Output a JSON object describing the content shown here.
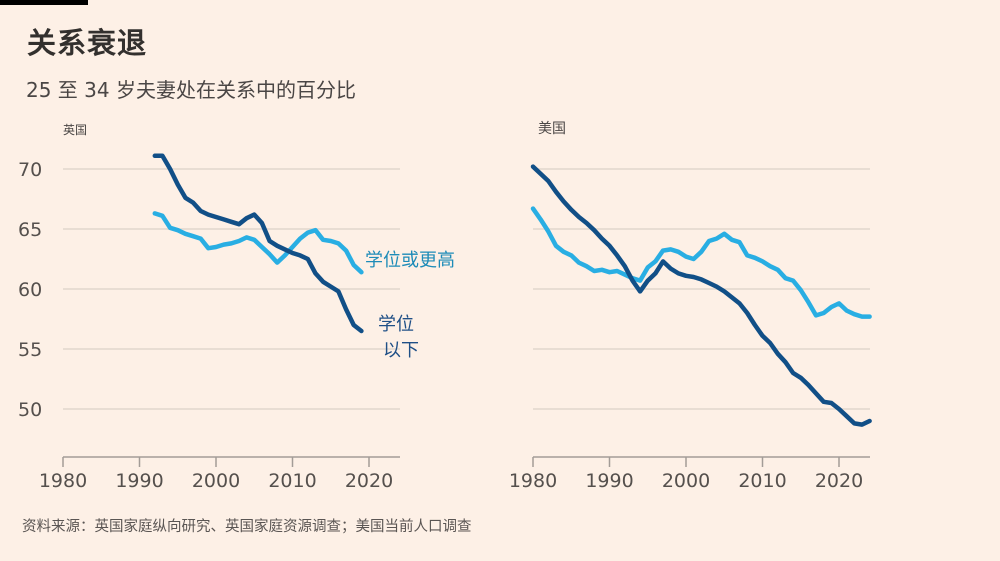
{
  "chart_data": [
    {
      "type": "line",
      "panel": "uk",
      "panel_label": "英国",
      "title": "关系衰退",
      "subtitle": "25 至 34 岁夫妻处在关系中的百分比",
      "xlabel": "",
      "ylabel": "",
      "xlim": [
        1980,
        2024
      ],
      "ylim": [
        45,
        72
      ],
      "x_ticks": [
        1980,
        1990,
        2000,
        2010,
        2020
      ],
      "y_ticks": [
        50,
        55,
        60,
        65,
        70
      ],
      "grid": true,
      "x": [
        1992,
        1993,
        1994,
        1995,
        1996,
        1997,
        1998,
        1999,
        2000,
        2001,
        2002,
        2003,
        2004,
        2005,
        2006,
        2007,
        2008,
        2009,
        2010,
        2011,
        2012,
        2013,
        2014,
        2015,
        2016,
        2017,
        2018,
        2019
      ],
      "series": [
        {
          "name": "学位或更高",
          "color": "#29aee3",
          "label_lines": [
            "学位或更高"
          ],
          "label_color": "#1d8bb8",
          "values": [
            66.3,
            66.1,
            65.1,
            64.9,
            64.6,
            64.4,
            64.2,
            63.4,
            63.5,
            63.7,
            63.8,
            64.0,
            64.3,
            64.1,
            63.5,
            62.9,
            62.2,
            62.8,
            63.5,
            64.2,
            64.7,
            64.9,
            64.1,
            64.0,
            63.8,
            63.2,
            62.0,
            61.4
          ]
        },
        {
          "name": "学位以下",
          "color": "#114f87",
          "label_lines": [
            "学位",
            "以下"
          ],
          "label_color": "#1f4f86",
          "values": [
            71.1,
            71.1,
            70.0,
            68.7,
            67.6,
            67.2,
            66.5,
            66.2,
            66.0,
            65.8,
            65.6,
            65.4,
            65.9,
            66.2,
            65.5,
            64.0,
            63.6,
            63.3,
            63.0,
            62.8,
            62.5,
            61.3,
            60.6,
            60.2,
            59.8,
            58.3,
            57.0,
            56.5
          ]
        }
      ]
    },
    {
      "type": "line",
      "panel": "us",
      "panel_label": "美国",
      "xlabel": "",
      "ylabel": "",
      "xlim": [
        1980,
        2024
      ],
      "ylim": [
        45,
        72
      ],
      "x_ticks": [
        1980,
        1990,
        2000,
        2010,
        2020
      ],
      "y_ticks": [
        50,
        55,
        60,
        65,
        70
      ],
      "grid": true,
      "x": [
        1980,
        1981,
        1982,
        1983,
        1984,
        1985,
        1986,
        1987,
        1988,
        1989,
        1990,
        1991,
        1992,
        1993,
        1994,
        1995,
        1996,
        1997,
        1998,
        1999,
        2000,
        2001,
        2002,
        2003,
        2004,
        2005,
        2006,
        2007,
        2008,
        2009,
        2010,
        2011,
        2012,
        2013,
        2014,
        2015,
        2016,
        2017,
        2018,
        2019,
        2020,
        2021,
        2022,
        2023,
        2024
      ],
      "series": [
        {
          "name": "学位或更高",
          "color": "#29aee3",
          "values": [
            66.7,
            65.8,
            64.8,
            63.6,
            63.1,
            62.8,
            62.2,
            61.9,
            61.5,
            61.6,
            61.4,
            61.5,
            61.2,
            60.9,
            60.7,
            61.8,
            62.3,
            63.2,
            63.3,
            63.1,
            62.7,
            62.5,
            63.1,
            64.0,
            64.2,
            64.6,
            64.1,
            63.9,
            62.8,
            62.6,
            62.3,
            61.9,
            61.6,
            60.9,
            60.7,
            59.9,
            58.9,
            57.8,
            58.0,
            58.5,
            58.8,
            58.2,
            57.9,
            57.7,
            57.7
          ]
        },
        {
          "name": "学位以下",
          "color": "#114f87",
          "values": [
            70.2,
            69.6,
            69.0,
            68.1,
            67.3,
            66.6,
            66.0,
            65.5,
            64.9,
            64.2,
            63.6,
            62.8,
            61.9,
            60.7,
            59.8,
            60.7,
            61.3,
            62.3,
            61.7,
            61.3,
            61.1,
            61.0,
            60.8,
            60.5,
            60.2,
            59.8,
            59.3,
            58.8,
            58.0,
            57.0,
            56.1,
            55.5,
            54.6,
            53.9,
            53.0,
            52.6,
            52.0,
            51.3,
            50.6,
            50.5,
            50.0,
            49.4,
            48.8,
            48.7,
            49.0
          ]
        }
      ]
    }
  ],
  "source": "资料来源：英国家庭纵向研究、英国家庭资源调查；美国当前人口调查"
}
